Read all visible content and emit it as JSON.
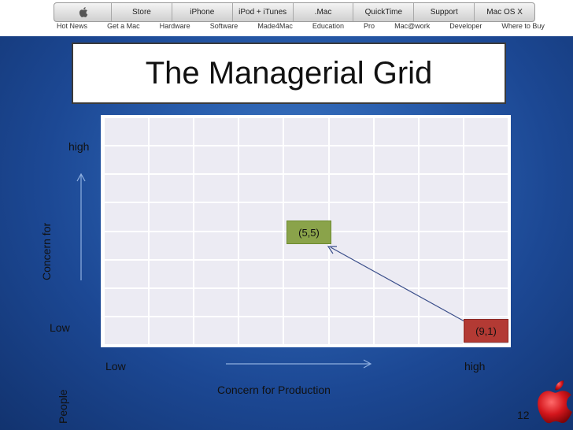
{
  "nav": {
    "tabs": [
      "Store",
      "iPhone",
      "iPod + iTunes",
      ".Mac",
      "QuickTime",
      "Support",
      "Mac OS X"
    ],
    "sublinks": [
      "Hot News",
      "Get a Mac",
      "Hardware",
      "Software",
      "Made4Mac",
      "Education",
      "Pro",
      "Mac@work",
      "Developer",
      "Where to Buy"
    ]
  },
  "slide": {
    "title": "The Managerial Grid",
    "y_high": "high",
    "y_low": "Low",
    "y_axis_label_1": "Concern  for",
    "y_axis_label_2": "People",
    "x_low": "Low",
    "x_high": "high",
    "x_axis_label": "Concern for Production",
    "page_number": "12",
    "point_mid": "(5,5)",
    "point_task": "(9,1)"
  },
  "colors": {
    "point_mid": "#8aa34a",
    "point_task": "#b33a34"
  }
}
